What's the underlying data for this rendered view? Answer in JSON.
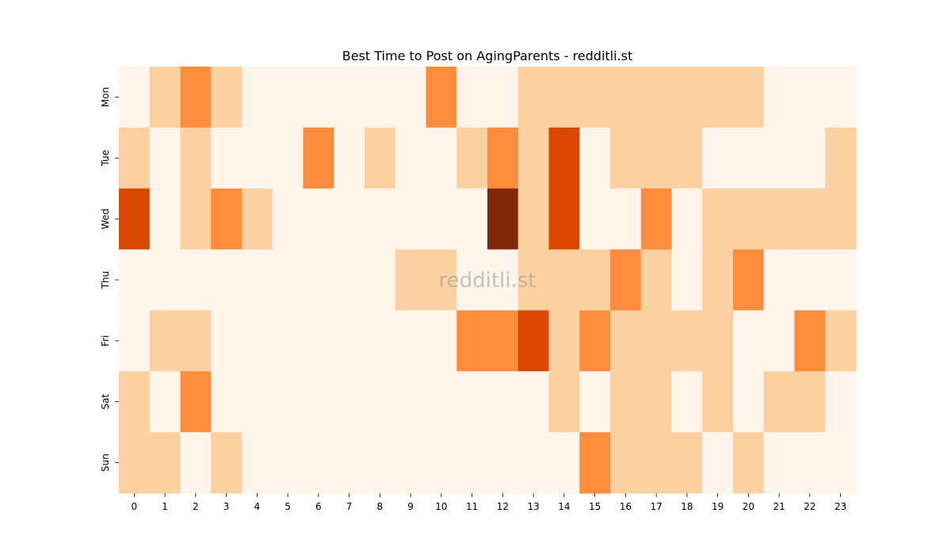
{
  "chart_data": {
    "type": "heatmap",
    "title": "Best Time to Post on AgingParents - redditli.st",
    "xlabel": "",
    "ylabel": "",
    "x_categories": [
      "0",
      "1",
      "2",
      "3",
      "4",
      "5",
      "6",
      "7",
      "8",
      "9",
      "10",
      "11",
      "12",
      "13",
      "14",
      "15",
      "16",
      "17",
      "18",
      "19",
      "20",
      "21",
      "22",
      "23"
    ],
    "y_categories": [
      "Mon",
      "Tue",
      "Wed",
      "Thu",
      "Fri",
      "Sat",
      "Sun"
    ],
    "values": [
      [
        0,
        1,
        2,
        1,
        0,
        0,
        0,
        0,
        0,
        0,
        2,
        0,
        0,
        1,
        1,
        1,
        1,
        1,
        1,
        1,
        1,
        0,
        0,
        0
      ],
      [
        1,
        0,
        1,
        0,
        0,
        0,
        2,
        0,
        1,
        0,
        0,
        1,
        2,
        1,
        3,
        0,
        1,
        1,
        1,
        0,
        0,
        0,
        0,
        1
      ],
      [
        3,
        0,
        1,
        2,
        1,
        0,
        0,
        0,
        0,
        0,
        0,
        0,
        4,
        1,
        3,
        0,
        0,
        2,
        0,
        1,
        1,
        1,
        1,
        1
      ],
      [
        0,
        0,
        0,
        0,
        0,
        0,
        0,
        0,
        0,
        1,
        1,
        0,
        0,
        1,
        1,
        1,
        2,
        1,
        0,
        1,
        2,
        0,
        0,
        0
      ],
      [
        0,
        1,
        1,
        0,
        0,
        0,
        0,
        0,
        0,
        0,
        0,
        2,
        2,
        3,
        1,
        2,
        1,
        1,
        1,
        1,
        0,
        0,
        2,
        1
      ],
      [
        1,
        0,
        2,
        0,
        0,
        0,
        0,
        0,
        0,
        0,
        0,
        0,
        0,
        0,
        1,
        0,
        1,
        1,
        0,
        1,
        0,
        1,
        1,
        0
      ],
      [
        1,
        1,
        0,
        1,
        0,
        0,
        0,
        0,
        0,
        0,
        0,
        0,
        0,
        0,
        0,
        2,
        1,
        1,
        1,
        0,
        1,
        0,
        0,
        0
      ]
    ],
    "value_range": [
      0,
      4
    ],
    "colormap": "Oranges",
    "color_levels": [
      "#fff5eb",
      "#fdd0a2",
      "#fd8d3c",
      "#d94701",
      "#7f2704"
    ],
    "colorbar": false,
    "grid": false,
    "watermark": "redditli.st"
  }
}
